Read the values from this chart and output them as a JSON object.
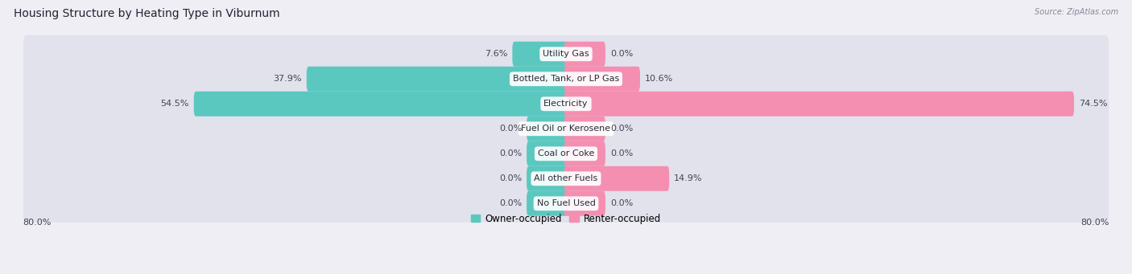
{
  "title": "Housing Structure by Heating Type in Viburnum",
  "source": "Source: ZipAtlas.com",
  "categories": [
    "Utility Gas",
    "Bottled, Tank, or LP Gas",
    "Electricity",
    "Fuel Oil or Kerosene",
    "Coal or Coke",
    "All other Fuels",
    "No Fuel Used"
  ],
  "owner_values": [
    7.6,
    37.9,
    54.5,
    0.0,
    0.0,
    0.0,
    0.0
  ],
  "renter_values": [
    0.0,
    10.6,
    74.5,
    0.0,
    0.0,
    14.9,
    0.0
  ],
  "owner_color": "#5BC8C0",
  "renter_color": "#F48FB1",
  "owner_label": "Owner-occupied",
  "renter_label": "Renter-occupied",
  "x_min": -80.0,
  "x_max": 80.0,
  "x_left_label": "80.0%",
  "x_right_label": "80.0%",
  "background_color": "#eeeef4",
  "bar_background_color": "#e2e2ec",
  "title_fontsize": 10,
  "label_fontsize": 8,
  "category_fontsize": 8,
  "legend_fontsize": 8.5,
  "min_bar_width": 5.5
}
